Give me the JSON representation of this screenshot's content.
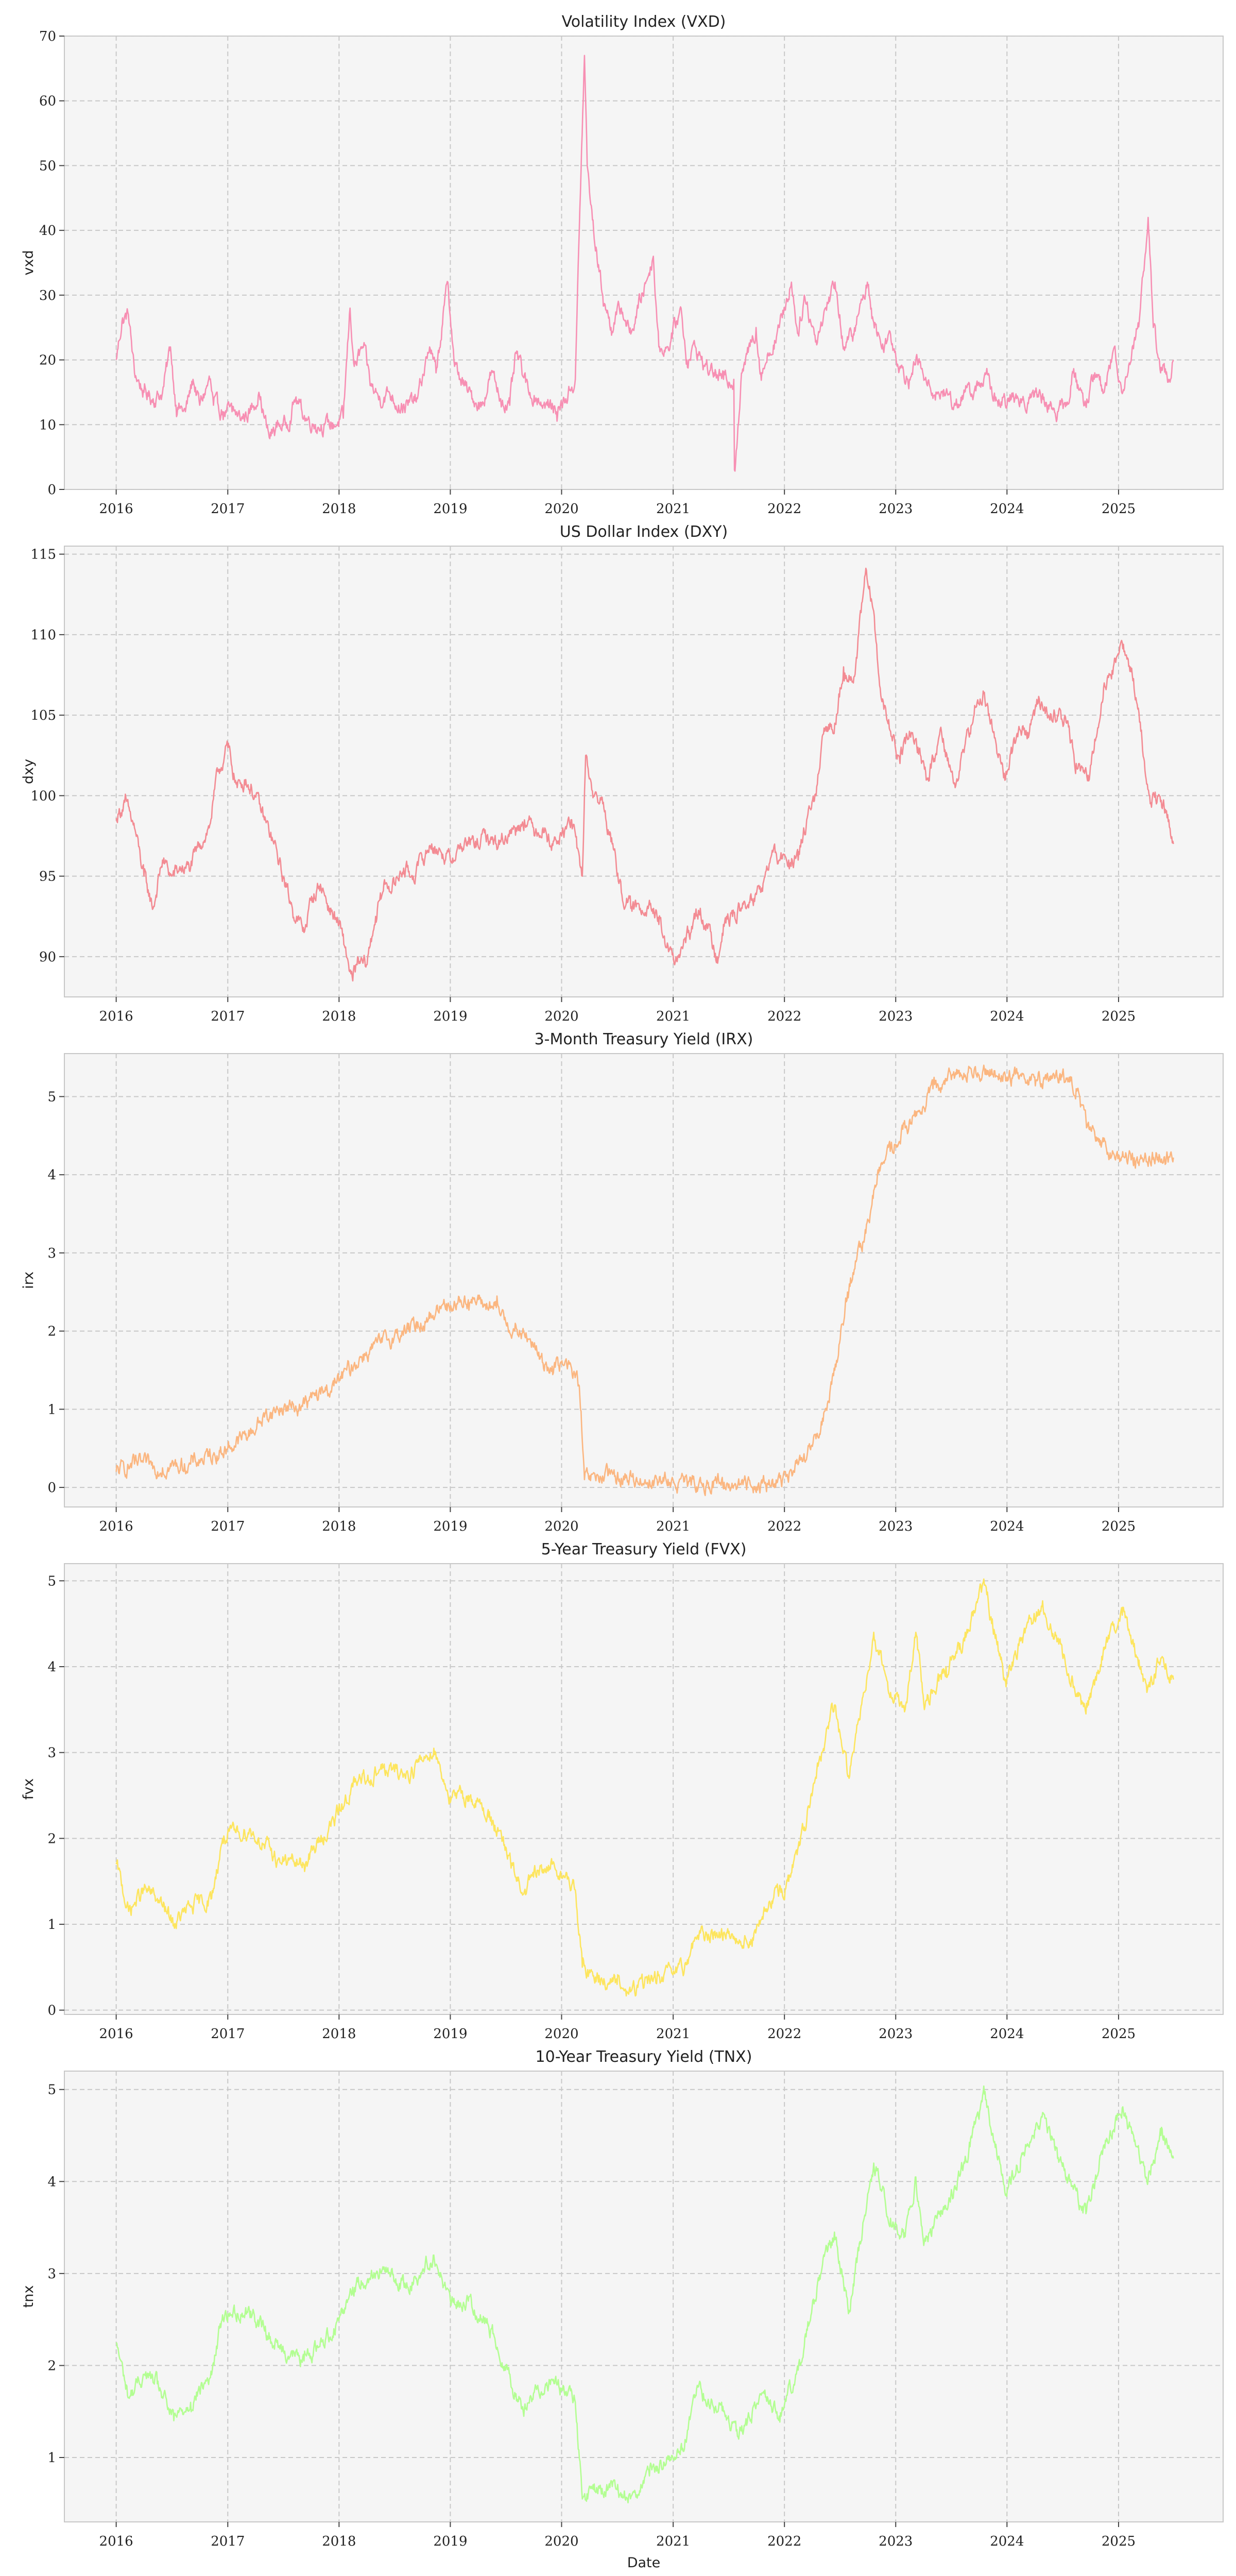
{
  "figure": {
    "xlabel": "Date",
    "x_ticks": [
      "2016",
      "2017",
      "2018",
      "2019",
      "2020",
      "2021",
      "2022",
      "2023",
      "2024",
      "2025"
    ]
  },
  "chart_data": [
    {
      "type": "line",
      "title": "Volatility Index (VXD)",
      "ylabel": "vxd",
      "color": "#f78fb3",
      "xlim": [
        "2015-07-15",
        "2025-12-10"
      ],
      "ylim": [
        0,
        70
      ],
      "y_ticks": [
        0,
        10,
        20,
        30,
        40,
        50,
        60,
        70
      ],
      "x": [
        "2016-01-01",
        "2016-01-20",
        "2016-02-10",
        "2016-03-01",
        "2016-04-01",
        "2016-05-01",
        "2016-06-01",
        "2016-06-27",
        "2016-07-15",
        "2016-08-15",
        "2016-09-09",
        "2016-10-01",
        "2016-11-03",
        "2016-11-15",
        "2016-12-15",
        "2017-01-15",
        "2017-02-15",
        "2017-03-15",
        "2017-04-13",
        "2017-05-01",
        "2017-05-17",
        "2017-06-15",
        "2017-07-15",
        "2017-08-11",
        "2017-09-15",
        "2017-10-15",
        "2017-11-15",
        "2017-12-15",
        "2018-01-15",
        "2018-02-06",
        "2018-02-20",
        "2018-03-22",
        "2018-04-15",
        "2018-05-15",
        "2018-06-15",
        "2018-07-15",
        "2018-08-15",
        "2018-09-15",
        "2018-10-25",
        "2018-11-15",
        "2018-12-24",
        "2019-01-15",
        "2019-02-15",
        "2019-03-15",
        "2019-04-15",
        "2019-05-15",
        "2019-06-15",
        "2019-07-15",
        "2019-08-05",
        "2019-09-15",
        "2019-10-15",
        "2019-11-15",
        "2019-12-15",
        "2020-01-15",
        "2020-02-15",
        "2020-02-28",
        "2020-03-16",
        "2020-03-25",
        "2020-04-15",
        "2020-05-15",
        "2020-06-11",
        "2020-07-15",
        "2020-08-15",
        "2020-09-08",
        "2020-10-28",
        "2020-11-15",
        "2020-12-15",
        "2021-01-27",
        "2021-02-15",
        "2021-03-15",
        "2021-04-15",
        "2021-05-15",
        "2021-06-15",
        "2021-07-19",
        "2021-07-21",
        "2021-08-15",
        "2021-09-30",
        "2021-10-15",
        "2021-11-30",
        "2021-12-15",
        "2022-01-24",
        "2022-02-15",
        "2022-03-07",
        "2022-04-15",
        "2022-05-15",
        "2022-06-16",
        "2022-07-15",
        "2022-08-15",
        "2022-09-30",
        "2022-10-13",
        "2022-11-15",
        "2022-12-15",
        "2023-01-15",
        "2023-02-15",
        "2023-03-13",
        "2023-04-15",
        "2023-05-15",
        "2023-06-15",
        "2023-07-15",
        "2023-08-15",
        "2023-09-15",
        "2023-10-25",
        "2023-11-15",
        "2023-12-15",
        "2024-01-15",
        "2024-02-15",
        "2024-03-15",
        "2024-04-15",
        "2024-05-15",
        "2024-06-15",
        "2024-07-15",
        "2024-08-05",
        "2024-09-15",
        "2024-10-15",
        "2024-11-15",
        "2024-12-18",
        "2025-01-15",
        "2025-02-15",
        "2025-03-10",
        "2025-04-08",
        "2025-04-25",
        "2025-05-15",
        "2025-06-15",
        "2025-06-30"
      ],
      "values": [
        20,
        26,
        27,
        18,
        15,
        14,
        15,
        22,
        13,
        12,
        17,
        13,
        17,
        13,
        12,
        12,
        11,
        12,
        15,
        11,
        8,
        10,
        10,
        14,
        11,
        10,
        10,
        10,
        11,
        28,
        19,
        22,
        16,
        14,
        15,
        13,
        13,
        14,
        22,
        18,
        32,
        19,
        16,
        14,
        13,
        18,
        14,
        13,
        21,
        15,
        14,
        13,
        12,
        14,
        17,
        40,
        67,
        50,
        40,
        30,
        25,
        28,
        24,
        28,
        36,
        22,
        22,
        28,
        20,
        22,
        19,
        18,
        17,
        17,
        3,
        18,
        25,
        18,
        23,
        25,
        32,
        24,
        30,
        23,
        28,
        32,
        22,
        24,
        32,
        28,
        22,
        24,
        19,
        17,
        20,
        16,
        15,
        15,
        13,
        15,
        15,
        18,
        14,
        13,
        14,
        14,
        14,
        15,
        13,
        12,
        13,
        18,
        13,
        18,
        15,
        22,
        15,
        22,
        26,
        42,
        25,
        20,
        17,
        20
      ]
    },
    {
      "type": "line",
      "title": "US Dollar Index (DXY)",
      "ylabel": "dxy",
      "color": "#f38b93",
      "xlim": [
        "2015-07-15",
        "2025-12-10"
      ],
      "ylim": [
        87.5,
        115.5
      ],
      "y_ticks": [
        90,
        95,
        100,
        105,
        110,
        115
      ],
      "x": [
        "2016-01-01",
        "2016-01-29",
        "2016-03-01",
        "2016-04-01",
        "2016-05-01",
        "2016-06-01",
        "2016-07-01",
        "2016-08-01",
        "2016-09-01",
        "2016-10-01",
        "2016-11-01",
        "2016-12-01",
        "2017-01-01",
        "2017-02-01",
        "2017-03-01",
        "2017-04-01",
        "2017-05-01",
        "2017-06-01",
        "2017-07-01",
        "2017-08-01",
        "2017-09-08",
        "2017-10-01",
        "2017-11-01",
        "2017-12-01",
        "2018-01-01",
        "2018-02-15",
        "2018-03-01",
        "2018-04-01",
        "2018-05-01",
        "2018-06-01",
        "2018-07-01",
        "2018-08-01",
        "2018-09-01",
        "2018-10-01",
        "2018-11-01",
        "2018-12-01",
        "2019-01-01",
        "2019-02-01",
        "2019-03-01",
        "2019-04-01",
        "2019-05-01",
        "2019-06-01",
        "2019-07-01",
        "2019-08-01",
        "2019-09-01",
        "2019-10-01",
        "2019-11-01",
        "2019-12-01",
        "2020-01-01",
        "2020-02-01",
        "2020-03-09",
        "2020-03-20",
        "2020-04-15",
        "2020-05-15",
        "2020-06-15",
        "2020-07-15",
        "2020-08-15",
        "2020-09-15",
        "2020-10-15",
        "2020-11-15",
        "2021-01-06",
        "2021-02-01",
        "2021-03-31",
        "2021-05-25",
        "2021-06-15",
        "2021-07-15",
        "2021-08-15",
        "2021-09-15",
        "2021-10-15",
        "2021-11-24",
        "2021-12-15",
        "2022-01-15",
        "2022-02-15",
        "2022-03-15",
        "2022-04-15",
        "2022-05-13",
        "2022-06-15",
        "2022-07-14",
        "2022-08-15",
        "2022-09-27",
        "2022-10-15",
        "2022-11-15",
        "2022-12-15",
        "2023-01-15",
        "2023-02-15",
        "2023-03-15",
        "2023-04-15",
        "2023-05-31",
        "2023-07-15",
        "2023-08-15",
        "2023-09-15",
        "2023-10-15",
        "2023-11-15",
        "2023-12-27",
        "2024-01-15",
        "2024-02-15",
        "2024-03-15",
        "2024-04-16",
        "2024-05-15",
        "2024-06-15",
        "2024-07-15",
        "2024-08-15",
        "2024-09-27",
        "2024-10-15",
        "2024-11-15",
        "2024-12-15",
        "2025-01-13",
        "2025-02-15",
        "2025-03-15",
        "2025-04-15",
        "2025-05-15",
        "2025-06-15",
        "2025-06-30"
      ],
      "values": [
        98.6,
        99.6,
        98,
        95,
        93,
        96,
        95,
        95.5,
        95.5,
        97,
        98,
        101.5,
        103,
        100.5,
        101,
        100,
        98.5,
        97,
        95,
        93,
        91.5,
        93.5,
        94.5,
        93,
        92,
        88.5,
        89.5,
        89.5,
        92.5,
        94.5,
        94.5,
        95.5,
        95,
        96,
        97,
        96.5,
        96,
        96.8,
        97,
        97,
        97.5,
        97,
        97.5,
        98,
        98.5,
        98,
        98,
        97,
        97.5,
        98.5,
        95,
        102.5,
        100,
        99.5,
        97,
        94,
        93,
        93,
        93.5,
        92,
        89.5,
        90.5,
        93,
        90,
        92,
        92.5,
        93,
        93.5,
        94,
        96.5,
        96,
        96,
        96,
        98.5,
        100,
        104,
        104.5,
        108,
        107,
        114,
        112,
        106,
        104,
        102,
        104,
        103,
        101,
        104,
        100.5,
        103,
        105,
        106.5,
        104,
        101,
        103,
        104,
        104,
        106,
        105,
        105,
        104.5,
        102,
        101,
        103.5,
        107,
        108,
        109.5,
        107.5,
        104,
        99.5,
        100,
        98.5,
        97
      ]
    },
    {
      "type": "line",
      "title": "3-Month Treasury Yield (IRX)",
      "ylabel": "irx",
      "color": "#fbb680",
      "xlim": [
        "2015-07-15",
        "2025-12-10"
      ],
      "ylim": [
        -0.25,
        5.55
      ],
      "y_ticks": [
        0,
        1,
        2,
        3,
        4,
        5
      ],
      "x": [
        "2016-01-01",
        "2016-03-01",
        "2016-06-01",
        "2016-09-01",
        "2016-11-01",
        "2017-01-01",
        "2017-03-15",
        "2017-05-01",
        "2017-06-15",
        "2017-09-01",
        "2017-12-15",
        "2018-03-21",
        "2018-06-13",
        "2018-09-26",
        "2018-12-19",
        "2019-03-01",
        "2019-06-01",
        "2019-07-31",
        "2019-09-18",
        "2019-10-30",
        "2019-12-01",
        "2020-02-01",
        "2020-02-28",
        "2020-03-03",
        "2020-03-16",
        "2020-04-01",
        "2020-06-01",
        "2020-09-01",
        "2020-12-01",
        "2021-03-01",
        "2021-06-01",
        "2021-09-01",
        "2021-12-01",
        "2022-02-01",
        "2022-03-16",
        "2022-05-04",
        "2022-06-15",
        "2022-07-27",
        "2022-09-21",
        "2022-11-02",
        "2022-12-14",
        "2023-02-01",
        "2023-03-22",
        "2023-05-03",
        "2023-06-15",
        "2023-07-26",
        "2023-10-15",
        "2024-01-01",
        "2024-04-01",
        "2024-07-15",
        "2024-08-15",
        "2024-09-18",
        "2024-11-07",
        "2024-12-18",
        "2025-03-01",
        "2025-06-01",
        "2025-06-30"
      ],
      "values": [
        0.2,
        0.3,
        0.25,
        0.3,
        0.4,
        0.5,
        0.7,
        0.9,
        1.0,
        1.05,
        1.3,
        1.7,
        1.9,
        2.1,
        2.35,
        2.4,
        2.3,
        2.0,
        1.9,
        1.6,
        1.55,
        1.55,
        1.3,
        1.0,
        0.1,
        0.1,
        0.15,
        0.1,
        0.08,
        0.03,
        0.05,
        0.05,
        0.05,
        0.2,
        0.4,
        0.8,
        1.5,
        2.5,
        3.2,
        4.0,
        4.3,
        4.6,
        4.8,
        5.1,
        5.2,
        5.3,
        5.35,
        5.25,
        5.25,
        5.22,
        5.1,
        4.6,
        4.4,
        4.25,
        4.2,
        4.23,
        4.22
      ]
    },
    {
      "type": "line",
      "title": "5-Year Treasury Yield (FVX)",
      "ylabel": "fvx",
      "color": "#fde55e",
      "xlim": [
        "2015-07-15",
        "2025-12-10"
      ],
      "ylim": [
        -0.05,
        5.2
      ],
      "y_ticks": [
        0,
        1,
        2,
        3,
        4,
        5
      ],
      "x": [
        "2016-01-01",
        "2016-02-11",
        "2016-04-01",
        "2016-05-15",
        "2016-07-08",
        "2016-09-01",
        "2016-11-09",
        "2016-12-15",
        "2017-03-13",
        "2017-06-15",
        "2017-09-08",
        "2017-12-15",
        "2018-02-15",
        "2018-05-15",
        "2018-08-15",
        "2018-11-08",
        "2019-01-03",
        "2019-03-01",
        "2019-05-15",
        "2019-08-28",
        "2019-10-01",
        "2019-12-01",
        "2020-02-15",
        "2020-03-09",
        "2020-04-15",
        "2020-07-01",
        "2020-08-04",
        "2020-10-15",
        "2020-12-01",
        "2021-02-01",
        "2021-03-15",
        "2021-06-15",
        "2021-09-15",
        "2021-11-15",
        "2022-01-15",
        "2022-03-15",
        "2022-05-03",
        "2022-06-14",
        "2022-08-01",
        "2022-10-21",
        "2022-12-15",
        "2023-02-01",
        "2023-03-08",
        "2023-04-05",
        "2023-06-15",
        "2023-08-15",
        "2023-10-19",
        "2023-12-27",
        "2024-02-15",
        "2024-04-25",
        "2024-06-15",
        "2024-09-16",
        "2024-11-15",
        "2025-01-13",
        "2025-03-15",
        "2025-04-04",
        "2025-05-20",
        "2025-06-30"
      ],
      "values": [
        1.7,
        1.15,
        1.4,
        1.3,
        1.0,
        1.2,
        1.3,
        2.0,
        2.1,
        1.75,
        1.7,
        2.2,
        2.6,
        2.8,
        2.75,
        3.05,
        2.45,
        2.5,
        2.25,
        1.35,
        1.55,
        1.7,
        1.4,
        0.5,
        0.4,
        0.3,
        0.2,
        0.35,
        0.4,
        0.45,
        0.85,
        0.9,
        0.8,
        1.25,
        1.5,
        2.2,
        3.0,
        3.55,
        2.7,
        4.4,
        3.7,
        3.5,
        4.4,
        3.5,
        4.0,
        4.3,
        4.95,
        3.85,
        4.3,
        4.7,
        4.3,
        3.45,
        4.2,
        4.6,
        4.0,
        3.7,
        4.1,
        3.85
      ]
    },
    {
      "type": "line",
      "title": "10-Year Treasury Yield (TNX)",
      "ylabel": "tnx",
      "color": "#b3fe92",
      "xlim": [
        "2015-07-15",
        "2025-12-10"
      ],
      "ylim": [
        0.3,
        5.2
      ],
      "y_ticks": [
        1,
        2,
        3,
        4,
        5
      ],
      "x": [
        "2016-01-01",
        "2016-02-11",
        "2016-04-01",
        "2016-05-15",
        "2016-07-08",
        "2016-09-01",
        "2016-11-09",
        "2016-12-15",
        "2017-03-13",
        "2017-06-15",
        "2017-09-08",
        "2017-12-15",
        "2018-02-15",
        "2018-05-15",
        "2018-08-15",
        "2018-11-08",
        "2019-01-03",
        "2019-03-01",
        "2019-05-15",
        "2019-08-28",
        "2019-10-01",
        "2019-12-01",
        "2020-02-15",
        "2020-03-09",
        "2020-04-15",
        "2020-07-01",
        "2020-08-04",
        "2020-10-15",
        "2020-12-01",
        "2021-02-01",
        "2021-03-19",
        "2021-06-15",
        "2021-08-04",
        "2021-10-21",
        "2021-12-15",
        "2022-02-15",
        "2022-05-06",
        "2022-06-14",
        "2022-08-01",
        "2022-10-21",
        "2022-12-15",
        "2023-02-01",
        "2023-03-08",
        "2023-04-05",
        "2023-06-15",
        "2023-08-15",
        "2023-10-19",
        "2023-12-27",
        "2024-02-15",
        "2024-04-25",
        "2024-06-15",
        "2024-09-16",
        "2024-11-15",
        "2025-01-13",
        "2025-03-15",
        "2025-04-04",
        "2025-05-20",
        "2025-06-30"
      ],
      "values": [
        2.25,
        1.65,
        1.9,
        1.8,
        1.4,
        1.6,
        1.9,
        2.55,
        2.6,
        2.2,
        2.05,
        2.4,
        2.85,
        3.05,
        2.85,
        3.2,
        2.65,
        2.7,
        2.4,
        1.5,
        1.7,
        1.85,
        1.6,
        0.55,
        0.65,
        0.65,
        0.55,
        0.8,
        0.95,
        1.1,
        1.75,
        1.5,
        1.2,
        1.7,
        1.45,
        1.95,
        3.1,
        3.45,
        2.6,
        4.2,
        3.6,
        3.4,
        4.05,
        3.35,
        3.7,
        4.2,
        4.95,
        3.85,
        4.25,
        4.7,
        4.25,
        3.65,
        4.4,
        4.8,
        4.2,
        4.0,
        4.5,
        4.25
      ]
    }
  ]
}
